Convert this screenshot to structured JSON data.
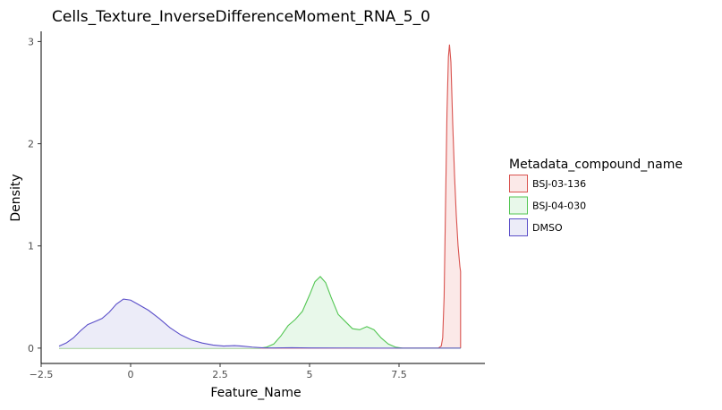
{
  "chart_data": {
    "type": "area",
    "title": "Cells_Texture_InverseDifferenceMoment_RNA_5_0",
    "xlabel": "Feature_Name",
    "ylabel": "Density",
    "xlim": [
      -2.5,
      9.9
    ],
    "ylim": [
      -0.15,
      3.1
    ],
    "x_ticks": [
      -2.5,
      0,
      2.5,
      5,
      7.5
    ],
    "x_tick_labels": [
      "−2.5",
      "0",
      "2.5",
      "5",
      "7.5"
    ],
    "y_ticks": [
      0,
      1,
      2,
      3
    ],
    "y_tick_labels": [
      "0",
      "1",
      "2",
      "3"
    ],
    "grid": false,
    "legend": {
      "title": "Metadata_compound_name",
      "position": "right"
    },
    "series": [
      {
        "name": "BSJ-03-136",
        "line_color": "#d9534f",
        "fill_color": "#fbe9e8",
        "points": [
          [
            -2,
            0
          ],
          [
            8.6,
            0
          ],
          [
            8.68,
            0.02
          ],
          [
            8.72,
            0.1
          ],
          [
            8.76,
            0.5
          ],
          [
            8.8,
            1.4
          ],
          [
            8.84,
            2.3
          ],
          [
            8.88,
            2.85
          ],
          [
            8.91,
            2.97
          ],
          [
            8.95,
            2.8
          ],
          [
            9.0,
            2.2
          ],
          [
            9.05,
            1.7
          ],
          [
            9.1,
            1.3
          ],
          [
            9.15,
            1.0
          ],
          [
            9.2,
            0.8
          ],
          [
            9.22,
            0.75
          ],
          [
            9.22,
            0
          ]
        ]
      },
      {
        "name": "BSJ-04-030",
        "line_color": "#53c653",
        "fill_color": "#e8f8ea",
        "points": [
          [
            -2,
            0
          ],
          [
            3.6,
            0
          ],
          [
            3.8,
            0.01
          ],
          [
            4.0,
            0.04
          ],
          [
            4.2,
            0.12
          ],
          [
            4.4,
            0.22
          ],
          [
            4.6,
            0.28
          ],
          [
            4.8,
            0.36
          ],
          [
            5.0,
            0.52
          ],
          [
            5.15,
            0.65
          ],
          [
            5.3,
            0.7
          ],
          [
            5.45,
            0.64
          ],
          [
            5.6,
            0.5
          ],
          [
            5.8,
            0.33
          ],
          [
            6.0,
            0.26
          ],
          [
            6.2,
            0.19
          ],
          [
            6.4,
            0.18
          ],
          [
            6.6,
            0.21
          ],
          [
            6.8,
            0.18
          ],
          [
            7.0,
            0.1
          ],
          [
            7.2,
            0.04
          ],
          [
            7.4,
            0.01
          ],
          [
            7.6,
            0
          ],
          [
            9.22,
            0
          ]
        ]
      },
      {
        "name": "DMSO",
        "line_color": "#5b4fc9",
        "fill_color": "#ececf8",
        "points": [
          [
            -2.0,
            0.02
          ],
          [
            -1.8,
            0.05
          ],
          [
            -1.6,
            0.1
          ],
          [
            -1.4,
            0.17
          ],
          [
            -1.2,
            0.23
          ],
          [
            -1.0,
            0.26
          ],
          [
            -0.8,
            0.29
          ],
          [
            -0.6,
            0.35
          ],
          [
            -0.4,
            0.43
          ],
          [
            -0.2,
            0.48
          ],
          [
            0.0,
            0.47
          ],
          [
            0.2,
            0.43
          ],
          [
            0.5,
            0.37
          ],
          [
            0.8,
            0.29
          ],
          [
            1.1,
            0.2
          ],
          [
            1.4,
            0.13
          ],
          [
            1.7,
            0.08
          ],
          [
            2.0,
            0.05
          ],
          [
            2.3,
            0.03
          ],
          [
            2.6,
            0.02
          ],
          [
            2.9,
            0.025
          ],
          [
            3.1,
            0.02
          ],
          [
            3.4,
            0.01
          ],
          [
            3.7,
            0.003
          ],
          [
            4.0,
            0.002
          ],
          [
            4.5,
            0.004
          ],
          [
            5.0,
            0.002
          ],
          [
            6.0,
            0.001
          ],
          [
            7.0,
            0
          ],
          [
            9.22,
            0
          ]
        ]
      }
    ]
  }
}
